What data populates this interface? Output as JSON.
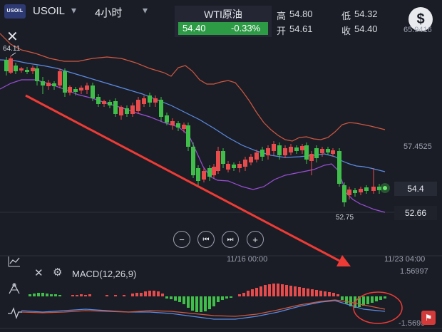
{
  "header": {
    "logo_text": "USOIL",
    "symbol": "USOIL",
    "symbol_caret": "▾",
    "timeframe": "4小时",
    "timeframe_caret": "▾"
  },
  "quote": {
    "name": "WTI原油",
    "price": "54.40",
    "change": "-0.33%",
    "high_label": "高",
    "high": "54.80",
    "open_label": "开",
    "open": "54.61",
    "low_label": "低",
    "low": "54.32",
    "close_label": "收",
    "close": "54.40"
  },
  "currency_icon": "$",
  "close_icon": "✕",
  "price_axis": {
    "top": "65.9416",
    "mid": "57.4525",
    "current": "54.4",
    "low_tag": "52.66"
  },
  "annotations": {
    "high": "64.11",
    "low": "52.75"
  },
  "time_axis": {
    "label1": "11/16 00:00",
    "label2": "11/23 04:00"
  },
  "nav": {
    "zoom_out": "−",
    "prev": "⏮",
    "next": "⏭",
    "zoom_in": "+"
  },
  "indicator": {
    "name": "MACD(12,26,9)",
    "top": "1.56997",
    "bottom": "-1.5699"
  },
  "colors": {
    "up": "#e84b4b",
    "down": "#3fbf4a",
    "quote_green": "#2d9a46",
    "arrow": "#ee3b35",
    "bb_upper": "#d05840",
    "bb_mid": "#5a8ce6",
    "bb_lower": "#9a4fd8"
  },
  "chart_data": {
    "type": "candlestick",
    "indicators": [
      "Bollinger Bands",
      "MACD(12,26,9)"
    ],
    "annotations": [
      "64.11",
      "52.75"
    ],
    "y_ticks": [
      "65.9416",
      "57.4525",
      "54.4",
      "52.66"
    ],
    "x_ticks": [
      "11/16 00:00",
      "11/23 04:00"
    ]
  }
}
